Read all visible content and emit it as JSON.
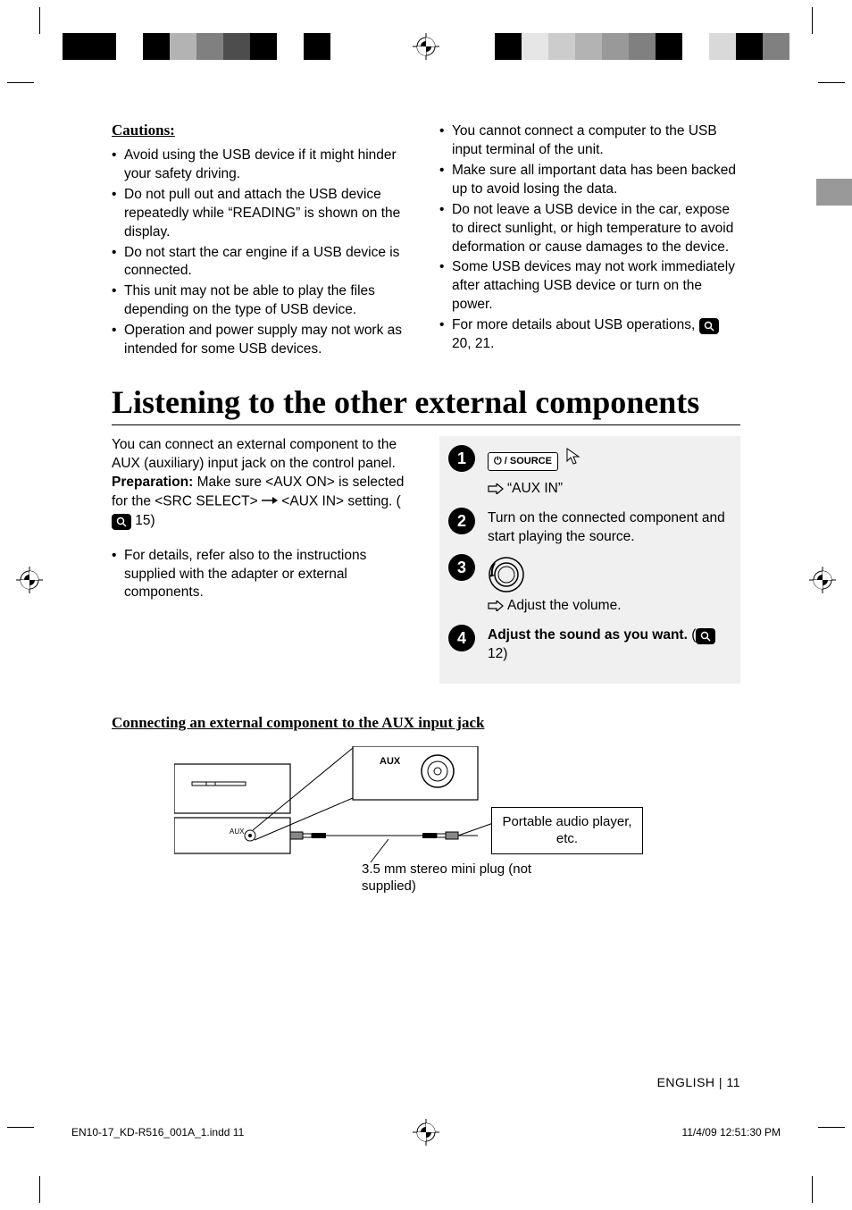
{
  "colors": {
    "left_bar": [
      "#000000",
      "#000000",
      "#ffffff",
      "#000000",
      "#b3b3b3",
      "#808080",
      "#4d4d4d",
      "#000000",
      "#ffffff",
      "#000000",
      "#ffffff",
      "#ffffff"
    ],
    "right_bar": [
      "#ffffff",
      "#000000",
      "#e6e6e6",
      "#cccccc",
      "#b3b3b3",
      "#999999",
      "#808080",
      "#000000",
      "#ffffff",
      "#d9d9d9",
      "#000000",
      "#808080"
    ],
    "side_tab": "#999999"
  },
  "cautions": {
    "heading": "Cautions:",
    "left_items": [
      "Avoid using the USB device if it might hinder your safety driving.",
      "Do not pull out and attach the USB device repeatedly while “READING” is shown on the display.",
      "Do not start the car engine if a USB device is connected.",
      "This unit may not be able to play the files depending on the type of USB device.",
      "Operation and power supply may not work as intended for some USB devices."
    ],
    "right_items": [
      "You cannot connect a computer to the USB input terminal of the unit.",
      "Make sure all important data has been backed up to avoid losing the data.",
      "Do not leave a USB device in the car, expose to direct sunlight, or high temperature to avoid deformation or cause damages to the device.",
      "Some USB devices may not work immediately after attaching USB device or turn on the power."
    ],
    "right_last_prefix": "For more details about USB operations, ",
    "right_last_pages": "20, 21."
  },
  "section_title": "Listening to the other external components",
  "intro": {
    "p1": "You can connect an external component to the AUX (auxiliary) input jack on the control panel.",
    "prep_label": "Preparation:",
    "prep_text_a": " Make sure <AUX ON> is selected for the <SRC SELECT> ",
    "prep_text_b": " <AUX IN> setting. (",
    "prep_page": " 15)",
    "details": "For details, refer also to the instructions supplied with the adapter or external components."
  },
  "steps": {
    "s1_btn": "⏻ / SOURCE",
    "s1_text": "“AUX IN”",
    "s2_text": "Turn on the connected component and start playing the source.",
    "s3_text": "Adjust the volume.",
    "s4_bold": "Adjust the sound as you want.",
    "s4_page": " 12)"
  },
  "subheading": "Connecting an external component to the AUX input jack",
  "diagram": {
    "aux_label": "AUX",
    "plug_label": "3.5 mm stereo mini plug (not supplied)",
    "player_label": "Portable audio player, etc."
  },
  "footer": {
    "lang": "ENGLISH",
    "sep": "   |   ",
    "page": "11"
  },
  "slug": {
    "file": "EN10-17_KD-R516_001A_1.indd   11",
    "date": "11/4/09   12:51:30 PM"
  }
}
